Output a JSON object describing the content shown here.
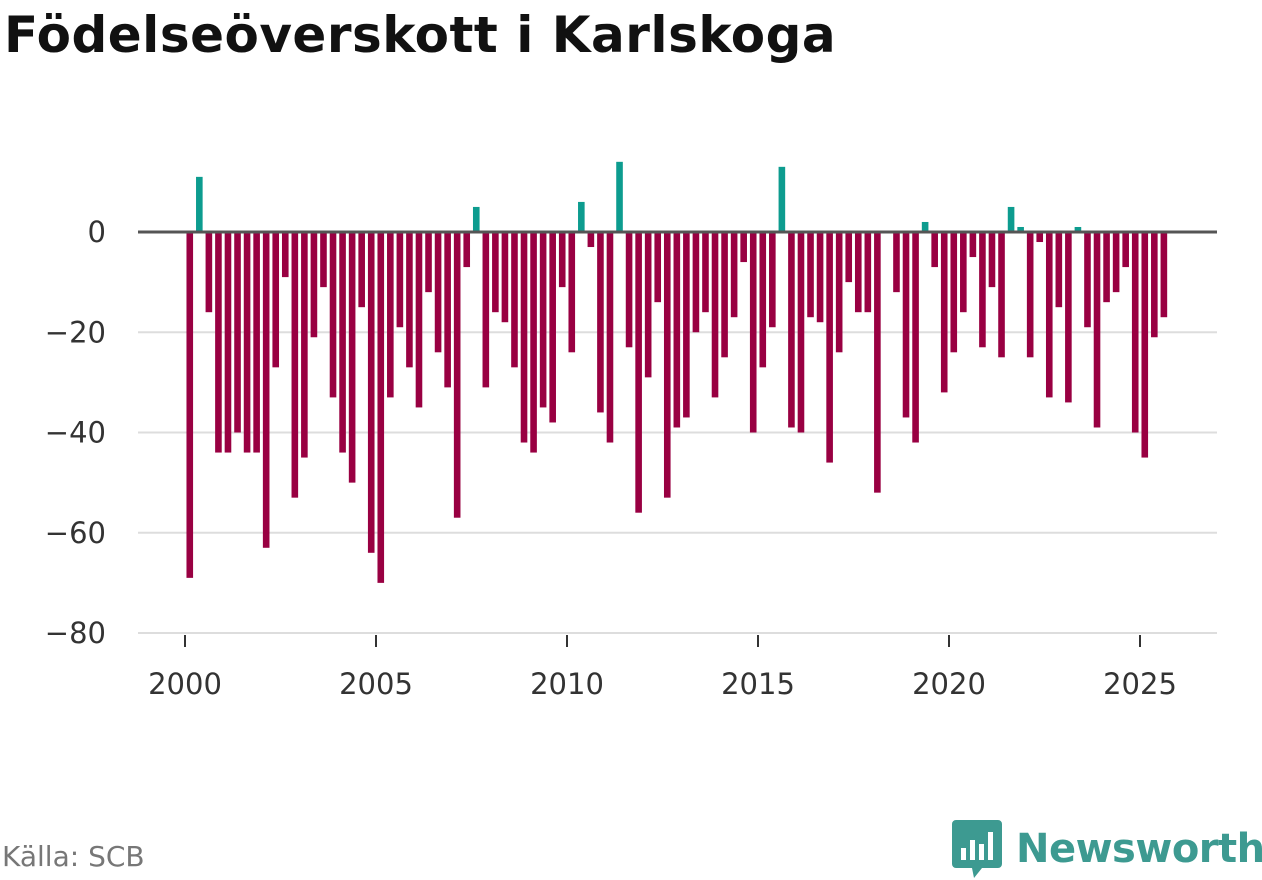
{
  "title": "Födelseöverskott i Karlskoga",
  "source": "Källa: SCB",
  "brand": {
    "name": "Newsworthy"
  },
  "colors": {
    "positive": "#0d9c8f",
    "negative": "#990042",
    "zero_line": "#555555",
    "grid": "#dddddd",
    "brand": "#3d9a91"
  },
  "chart_data": {
    "type": "bar",
    "title": "Födelseöverskott i Karlskoga",
    "xlabel": "",
    "ylabel": "",
    "ylim": [
      -80,
      14
    ],
    "xlim": [
      1999.5,
      2027.2
    ],
    "y_ticks": [
      0,
      -20,
      -40,
      -60,
      -80
    ],
    "y_tick_labels": [
      "0",
      "−20",
      "−40",
      "−60",
      "−80"
    ],
    "x_ticks": [
      2000,
      2005,
      2010,
      2015,
      2020,
      2025
    ],
    "x_tick_labels": [
      "2000",
      "2005",
      "2010",
      "2015",
      "2020",
      "2025"
    ],
    "frequency": "quarterly",
    "start": 2000.125,
    "step": 0.25,
    "values": [
      -69,
      11,
      -16,
      -44,
      -44,
      -40,
      -44,
      -44,
      -63,
      -27,
      -9,
      -53,
      -45,
      -21,
      -11,
      -33,
      -44,
      -50,
      -15,
      -64,
      -70,
      -33,
      -19,
      -27,
      -35,
      -12,
      -24,
      -31,
      -57,
      -7,
      5,
      -31,
      -16,
      -18,
      -27,
      -42,
      -44,
      -35,
      -38,
      -11,
      -24,
      6,
      -3,
      -36,
      -42,
      14,
      -23,
      -56,
      -29,
      -14,
      -53,
      -39,
      -37,
      -20,
      -16,
      -33,
      -25,
      -17,
      -6,
      -40,
      -27,
      -19,
      13,
      -39,
      -40,
      -17,
      -18,
      -46,
      -24,
      -10,
      -16,
      -16,
      -52,
      0,
      -12,
      -37,
      -42,
      2,
      -7,
      -32,
      -24,
      -16,
      -5,
      -23,
      -11,
      -25,
      5,
      1,
      -25,
      -2,
      -33,
      -15,
      -34,
      1,
      -19,
      -39,
      -14,
      -12,
      -7,
      -40,
      -45,
      -21,
      -17
    ]
  }
}
